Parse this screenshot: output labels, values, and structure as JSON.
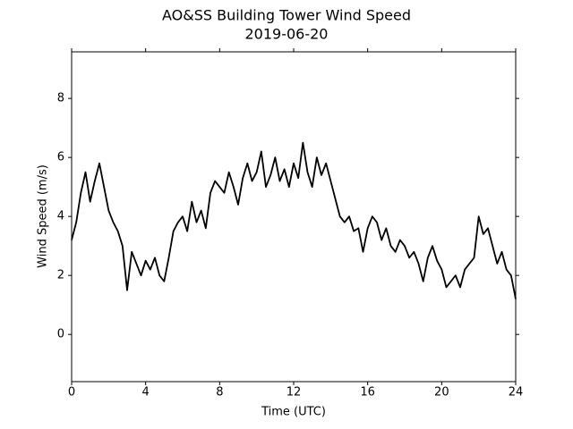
{
  "chart_data": {
    "type": "line",
    "title": "AO&SS Building Tower Wind Speed",
    "subtitle": "2019-06-20",
    "x_label": "Time (UTC)",
    "y_label": "Wind Speed (m/s)",
    "x": [
      0,
      0.25,
      0.5,
      0.75,
      1,
      1.25,
      1.5,
      1.75,
      2,
      2.25,
      2.5,
      2.75,
      3,
      3.25,
      3.5,
      3.75,
      4,
      4.25,
      4.5,
      4.75,
      5,
      5.25,
      5.5,
      5.75,
      6,
      6.25,
      6.5,
      6.75,
      7,
      7.25,
      7.5,
      7.75,
      8,
      8.25,
      8.5,
      8.75,
      9,
      9.25,
      9.5,
      9.75,
      10,
      10.25,
      10.5,
      10.75,
      11,
      11.25,
      11.5,
      11.75,
      12,
      12.25,
      12.5,
      12.75,
      13,
      13.25,
      13.5,
      13.75,
      14,
      14.25,
      14.5,
      14.75,
      15,
      15.25,
      15.5,
      15.75,
      16,
      16.25,
      16.5,
      16.75,
      17,
      17.25,
      17.5,
      17.75,
      18,
      18.25,
      18.5,
      18.75,
      19,
      19.25,
      19.5,
      19.75,
      20,
      20.25,
      20.5,
      20.75,
      21,
      21.25,
      21.5,
      21.75,
      22,
      22.25,
      22.5,
      22.75,
      23,
      23.25,
      23.5,
      23.75,
      24
    ],
    "series": [
      {
        "name": "Wind Speed",
        "color": "#000000",
        "values": [
          3.2,
          3.8,
          4.8,
          5.5,
          4.5,
          5.2,
          5.8,
          5.0,
          4.2,
          3.8,
          3.5,
          3.0,
          1.5,
          2.8,
          2.4,
          2.0,
          2.5,
          2.2,
          2.6,
          2.0,
          1.8,
          2.6,
          3.5,
          3.8,
          4.0,
          3.5,
          4.5,
          3.8,
          4.2,
          3.6,
          4.8,
          5.2,
          5.0,
          4.8,
          5.5,
          5.0,
          4.4,
          5.3,
          5.8,
          5.2,
          5.5,
          6.2,
          5.0,
          5.4,
          6.0,
          5.2,
          5.6,
          5.0,
          5.8,
          5.3,
          6.5,
          5.5,
          5.0,
          6.0,
          5.4,
          5.8,
          5.2,
          4.6,
          4.0,
          3.8,
          4.0,
          3.5,
          3.6,
          2.8,
          3.6,
          4.0,
          3.8,
          3.2,
          3.6,
          3.0,
          2.8,
          3.2,
          3.0,
          2.6,
          2.8,
          2.4,
          1.8,
          2.6,
          3.0,
          2.5,
          2.2,
          1.6,
          1.8,
          2.0,
          1.6,
          2.2,
          2.4,
          2.6,
          4.0,
          3.4,
          3.6,
          3.0,
          2.4,
          2.8,
          2.2,
          2.0,
          1.2
        ]
      }
    ],
    "xlim": [
      0,
      24
    ],
    "xticks": [
      0,
      4,
      8,
      12,
      16,
      20,
      24
    ],
    "ylim": [
      -1.6,
      9.58
    ],
    "yticks": [
      0,
      2,
      4,
      6,
      8
    ],
    "grid": false
  }
}
